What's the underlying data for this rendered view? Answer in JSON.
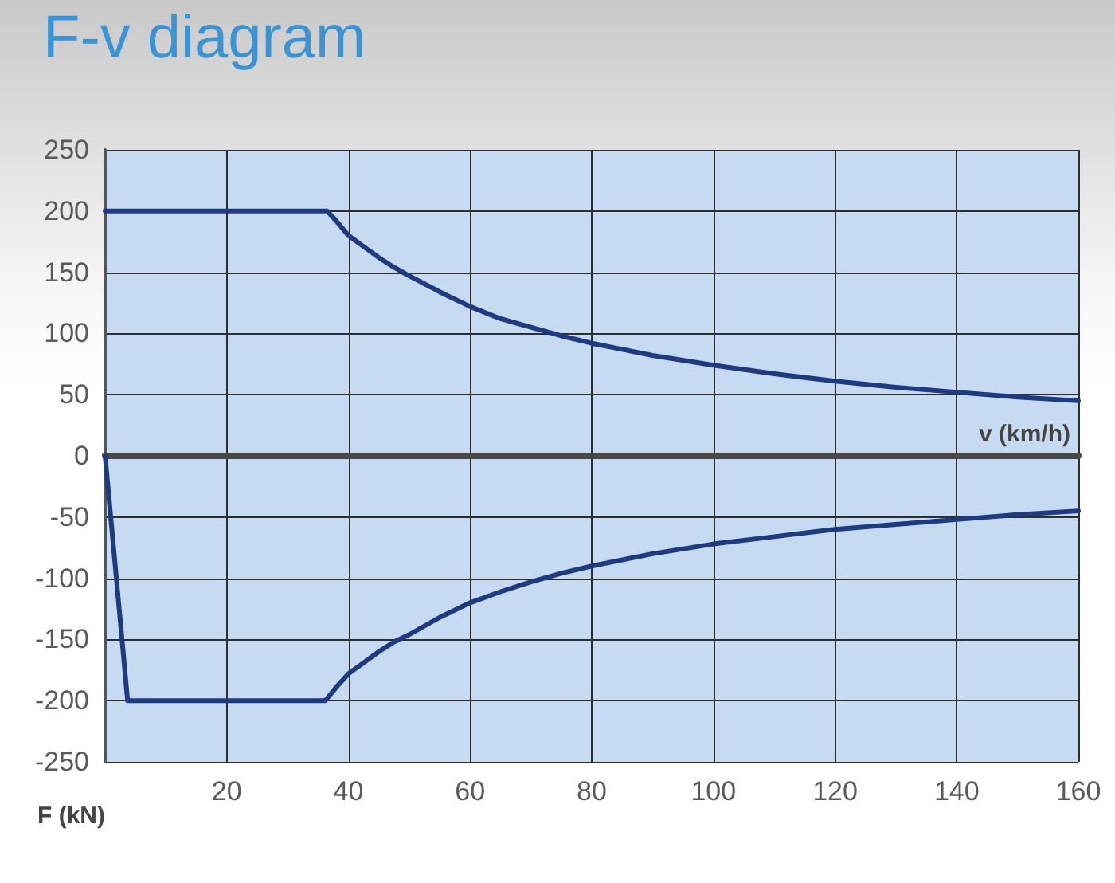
{
  "chart_data": {
    "type": "line",
    "title": "F-v diagram",
    "xlabel": "v (km/h)",
    "ylabel": "F (kN)",
    "xlim": [
      0,
      160
    ],
    "xticks": [
      20,
      40,
      60,
      80,
      100,
      120,
      140,
      160
    ],
    "ylim": [
      -250,
      250
    ],
    "yticks": [
      -250,
      -200,
      -150,
      -100,
      -50,
      0,
      50,
      100,
      150,
      200,
      250
    ],
    "grid": true,
    "marker": "none",
    "line_style": "solid",
    "series": [
      {
        "color": "#1f3b80",
        "x": [
          0,
          36.5,
          38,
          40,
          42.5,
          45,
          47.5,
          50,
          55,
          60,
          65,
          70,
          75,
          80,
          90,
          100,
          110,
          120,
          130,
          140,
          150,
          160
        ],
        "values": [
          200,
          200,
          192,
          180,
          171,
          162,
          154,
          147,
          134,
          122,
          112,
          105,
          98,
          92,
          82,
          74,
          67,
          61,
          56,
          52,
          48,
          45
        ]
      },
      {
        "color": "#1f3b80",
        "x": [
          0,
          3.7,
          36.2,
          38,
          40,
          42.5,
          45,
          47.5,
          50,
          55,
          60,
          65,
          70,
          75,
          80,
          90,
          100,
          110,
          120,
          130,
          140,
          150,
          160
        ],
        "values": [
          0,
          -200,
          -200,
          -189,
          -178,
          -169,
          -160,
          -152,
          -146,
          -132,
          -120,
          -111,
          -103,
          -96,
          -90,
          -80,
          -72,
          -66,
          -60,
          -56,
          -52,
          -48,
          -45
        ]
      }
    ]
  }
}
